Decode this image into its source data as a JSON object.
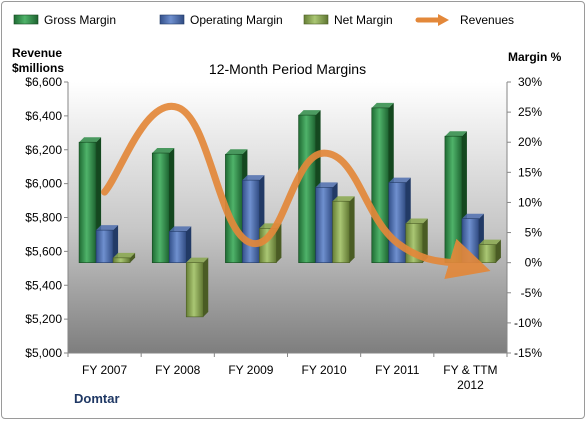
{
  "chart_data": {
    "type": "bar",
    "title": "12-Month Period Margins",
    "categories": [
      "FY 2007",
      "FY 2008",
      "FY 2009",
      "FY 2010",
      "FY 2011",
      "FY & TTM 2012"
    ],
    "y_left": {
      "label_line1": "Revenue",
      "label_line2": "$millions",
      "range": [
        5000,
        6600
      ],
      "ticks": [
        5000,
        5200,
        5400,
        5600,
        5800,
        6000,
        6200,
        6400,
        6600
      ],
      "tick_labels": [
        "$5,000",
        "$5,200",
        "$5,400",
        "$5,600",
        "$5,800",
        "$6,000",
        "$6,200",
        "$6,400",
        "$6,600"
      ]
    },
    "y_right": {
      "label": "Margin %",
      "range": [
        -15,
        30
      ],
      "ticks": [
        -15,
        -10,
        -5,
        0,
        5,
        10,
        15,
        20,
        25,
        30
      ],
      "tick_labels": [
        "-15%",
        "-10%",
        "-5%",
        "0%",
        "5%",
        "10%",
        "15%",
        "20%",
        "25%",
        "30%"
      ]
    },
    "series": [
      {
        "name": "Gross Margin",
        "kind": "bar",
        "axis": "right",
        "color": "#2e8b47",
        "values": [
          20,
          18.2,
          18,
          24.5,
          25.7,
          21
        ]
      },
      {
        "name": "Operating Margin",
        "kind": "bar",
        "axis": "right",
        "color": "#4f6faf",
        "values": [
          5.4,
          5.2,
          13.7,
          12.5,
          13.3,
          7.3
        ]
      },
      {
        "name": "Net Margin",
        "kind": "bar",
        "axis": "right",
        "color": "#8aa84e",
        "values": [
          0.8,
          -9,
          5.7,
          10.2,
          6.5,
          3
        ]
      },
      {
        "name": "Revenues",
        "kind": "line",
        "axis": "left",
        "color": "#e3883a",
        "values": [
          5950,
          6450,
          5650,
          6180,
          5650,
          5520
        ]
      }
    ],
    "legend_position": "top",
    "grid": false,
    "footer": "Domtar"
  }
}
